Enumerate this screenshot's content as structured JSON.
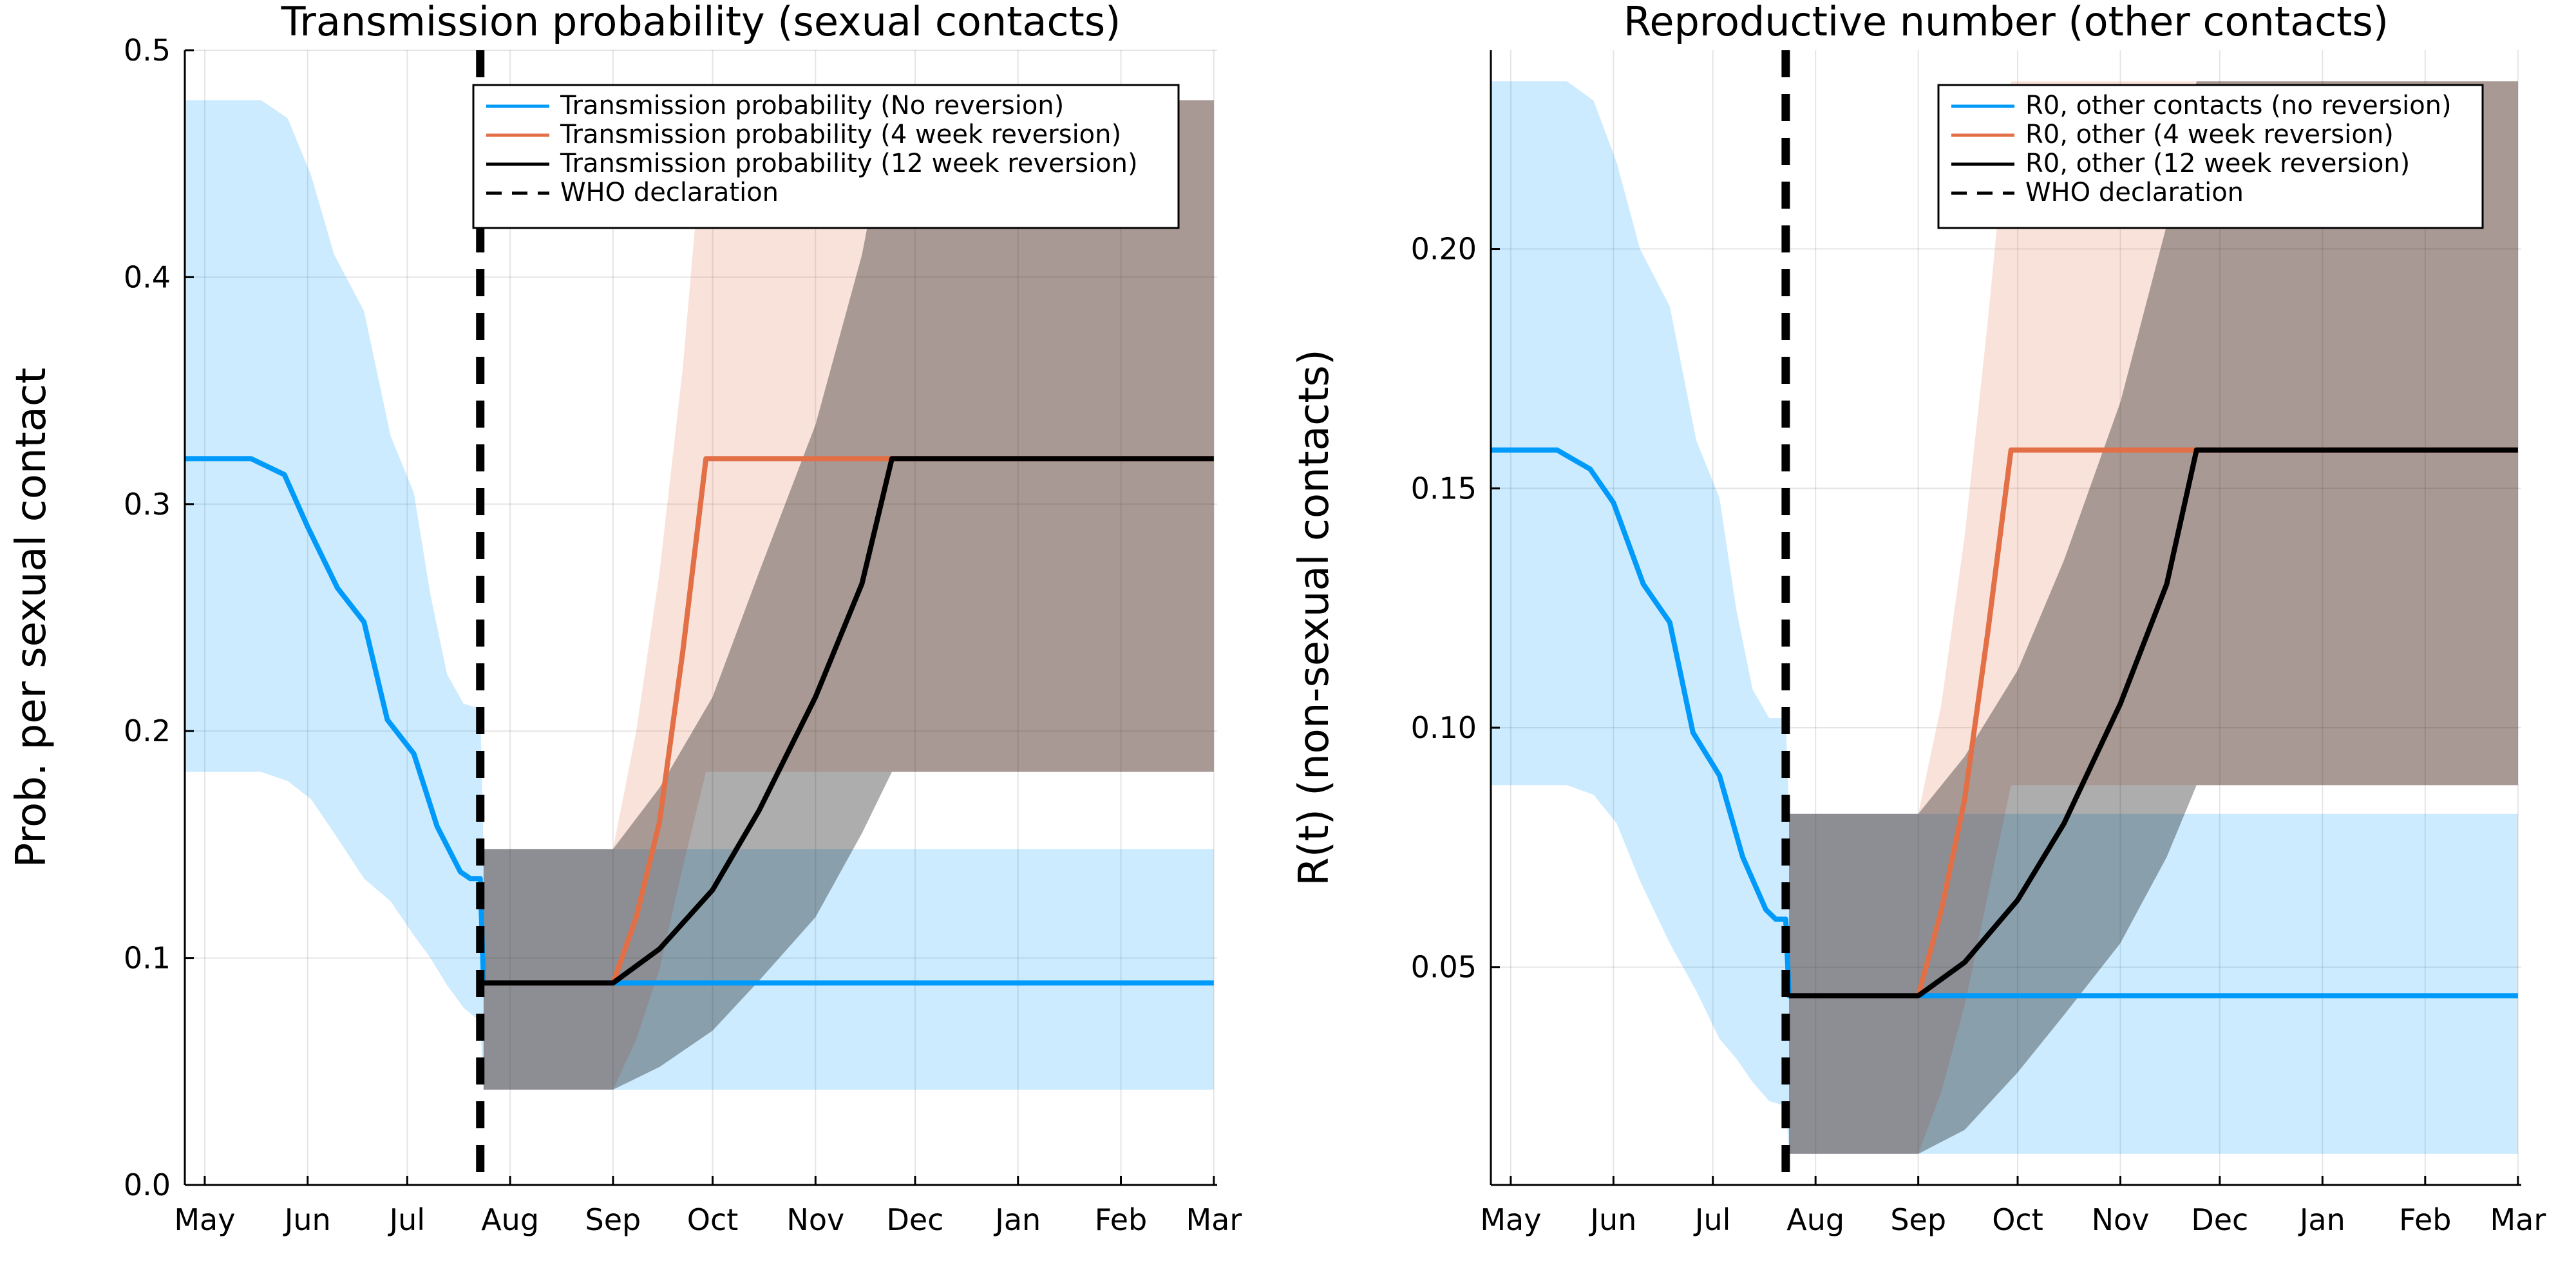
{
  "chart_data": [
    {
      "type": "line",
      "title": "Transmission probability (sexual contacts)",
      "xlabel": "",
      "ylabel": "Prob. per sexual contact",
      "x_axis": "date",
      "xlim": [
        "2022-04-25",
        "2023-03-02"
      ],
      "ylim": [
        0.0,
        0.5
      ],
      "x_ticks": [
        {
          "date": "2022-05-01",
          "label": "May"
        },
        {
          "date": "2022-06-01",
          "label": "Jun"
        },
        {
          "date": "2022-07-01",
          "label": "Jul"
        },
        {
          "date": "2022-08-01",
          "label": "Aug"
        },
        {
          "date": "2022-09-01",
          "label": "Sep"
        },
        {
          "date": "2022-10-01",
          "label": "Oct"
        },
        {
          "date": "2022-11-01",
          "label": "Nov"
        },
        {
          "date": "2022-12-01",
          "label": "Dec"
        },
        {
          "date": "2023-01-01",
          "label": "Jan"
        },
        {
          "date": "2023-02-01",
          "label": "Feb"
        },
        {
          "date": "2023-03-01",
          "label": "Mar"
        }
      ],
      "y_ticks": [
        {
          "value": 0.0,
          "label": "0.0"
        },
        {
          "value": 0.1,
          "label": "0.1"
        },
        {
          "value": 0.2,
          "label": "0.2"
        },
        {
          "value": 0.3,
          "label": "0.3"
        },
        {
          "value": 0.4,
          "label": "0.4"
        },
        {
          "value": 0.5,
          "label": "0.5"
        }
      ],
      "grid": true,
      "legend_position": "top-right",
      "series": [
        {
          "name": "Transmission probability (No reversion)",
          "color": "#009AFA",
          "points": [
            [
              "2022-04-25",
              0.32
            ],
            [
              "2022-05-15",
              0.32
            ],
            [
              "2022-05-25",
              0.313
            ],
            [
              "2022-06-01",
              0.29
            ],
            [
              "2022-06-10",
              0.263
            ],
            [
              "2022-06-18",
              0.248
            ],
            [
              "2022-06-25",
              0.205
            ],
            [
              "2022-07-03",
              0.19
            ],
            [
              "2022-07-10",
              0.158
            ],
            [
              "2022-07-17",
              0.138
            ],
            [
              "2022-07-20",
              0.135
            ],
            [
              "2022-07-23",
              0.135
            ],
            [
              "2022-07-24",
              0.089
            ],
            [
              "2023-03-01",
              0.089
            ]
          ],
          "band": [
            [
              "2022-04-25",
              0.478,
              0.182
            ],
            [
              "2022-05-18",
              0.478,
              0.182
            ],
            [
              "2022-05-26",
              0.47,
              0.178
            ],
            [
              "2022-06-02",
              0.445,
              0.17
            ],
            [
              "2022-06-09",
              0.41,
              0.155
            ],
            [
              "2022-06-18",
              0.385,
              0.135
            ],
            [
              "2022-06-26",
              0.33,
              0.125
            ],
            [
              "2022-07-03",
              0.305,
              0.11
            ],
            [
              "2022-07-08",
              0.26,
              0.1
            ],
            [
              "2022-07-13",
              0.225,
              0.088
            ],
            [
              "2022-07-18",
              0.212,
              0.078
            ],
            [
              "2022-07-23",
              0.21,
              0.072
            ],
            [
              "2022-07-24",
              0.148,
              0.042
            ],
            [
              "2023-03-01",
              0.148,
              0.042
            ]
          ]
        },
        {
          "name": "Transmission probability (4 week reversion)",
          "color": "#E26F46",
          "points": [
            [
              "2022-07-24",
              0.089
            ],
            [
              "2022-09-01",
              0.089
            ],
            [
              "2022-09-08",
              0.118
            ],
            [
              "2022-09-15",
              0.16
            ],
            [
              "2022-09-22",
              0.235
            ],
            [
              "2022-09-29",
              0.32
            ],
            [
              "2023-03-01",
              0.32
            ]
          ],
          "band": [
            [
              "2022-07-24",
              0.148,
              0.042
            ],
            [
              "2022-09-01",
              0.148,
              0.042
            ],
            [
              "2022-09-08",
              0.2,
              0.064
            ],
            [
              "2022-09-15",
              0.27,
              0.095
            ],
            [
              "2022-09-22",
              0.36,
              0.14
            ],
            [
              "2022-09-29",
              0.478,
              0.182
            ],
            [
              "2023-03-01",
              0.478,
              0.182
            ]
          ]
        },
        {
          "name": "Transmission probability (12 week reversion)",
          "color": "#000000",
          "points": [
            [
              "2022-07-24",
              0.089
            ],
            [
              "2022-09-01",
              0.089
            ],
            [
              "2022-09-15",
              0.104
            ],
            [
              "2022-10-01",
              0.13
            ],
            [
              "2022-10-15",
              0.165
            ],
            [
              "2022-11-01",
              0.215
            ],
            [
              "2022-11-15",
              0.265
            ],
            [
              "2022-11-24",
              0.32
            ],
            [
              "2023-03-01",
              0.32
            ]
          ],
          "band": [
            [
              "2022-07-24",
              0.148,
              0.042
            ],
            [
              "2022-09-01",
              0.148,
              0.042
            ],
            [
              "2022-09-15",
              0.175,
              0.052
            ],
            [
              "2022-10-01",
              0.215,
              0.068
            ],
            [
              "2022-10-15",
              0.27,
              0.09
            ],
            [
              "2022-11-01",
              0.335,
              0.118
            ],
            [
              "2022-11-15",
              0.41,
              0.155
            ],
            [
              "2022-11-24",
              0.478,
              0.182
            ],
            [
              "2023-03-01",
              0.478,
              0.182
            ]
          ]
        },
        {
          "name": "WHO declaration",
          "color": "#000000",
          "style": "dashed",
          "vline": "2022-07-23"
        }
      ]
    },
    {
      "type": "line",
      "title": "Reproductive number (other contacts)",
      "xlabel": "",
      "ylabel": "R(t) (non-sexual contacts)",
      "x_axis": "date",
      "xlim": [
        "2022-04-25",
        "2023-03-02"
      ],
      "ylim": [
        0.0045,
        0.2415
      ],
      "x_ticks": [
        {
          "date": "2022-05-01",
          "label": "May"
        },
        {
          "date": "2022-06-01",
          "label": "Jun"
        },
        {
          "date": "2022-07-01",
          "label": "Jul"
        },
        {
          "date": "2022-08-01",
          "label": "Aug"
        },
        {
          "date": "2022-09-01",
          "label": "Sep"
        },
        {
          "date": "2022-10-01",
          "label": "Oct"
        },
        {
          "date": "2022-11-01",
          "label": "Nov"
        },
        {
          "date": "2022-12-01",
          "label": "Dec"
        },
        {
          "date": "2023-01-01",
          "label": "Jan"
        },
        {
          "date": "2023-02-01",
          "label": "Feb"
        },
        {
          "date": "2023-03-01",
          "label": "Mar"
        }
      ],
      "y_ticks": [
        {
          "value": 0.05,
          "label": "0.05"
        },
        {
          "value": 0.1,
          "label": "0.10"
        },
        {
          "value": 0.15,
          "label": "0.15"
        },
        {
          "value": 0.2,
          "label": "0.20"
        }
      ],
      "grid": true,
      "legend_position": "top-right",
      "series": [
        {
          "name": "R0, other contacts (no reversion)",
          "color": "#009AFA",
          "points": [
            [
              "2022-04-25",
              0.158
            ],
            [
              "2022-05-15",
              0.158
            ],
            [
              "2022-05-25",
              0.154
            ],
            [
              "2022-06-01",
              0.147
            ],
            [
              "2022-06-10",
              0.13
            ],
            [
              "2022-06-18",
              0.122
            ],
            [
              "2022-06-25",
              0.099
            ],
            [
              "2022-07-03",
              0.09
            ],
            [
              "2022-07-10",
              0.073
            ],
            [
              "2022-07-17",
              0.062
            ],
            [
              "2022-07-20",
              0.06
            ],
            [
              "2022-07-23",
              0.06
            ],
            [
              "2022-07-24",
              0.044
            ],
            [
              "2023-03-01",
              0.044
            ]
          ],
          "band": [
            [
              "2022-04-25",
              0.235,
              0.088
            ],
            [
              "2022-05-18",
              0.235,
              0.088
            ],
            [
              "2022-05-26",
              0.231,
              0.086
            ],
            [
              "2022-06-02",
              0.218,
              0.08
            ],
            [
              "2022-06-09",
              0.2,
              0.068
            ],
            [
              "2022-06-18",
              0.188,
              0.055
            ],
            [
              "2022-06-26",
              0.16,
              0.045
            ],
            [
              "2022-07-03",
              0.148,
              0.035
            ],
            [
              "2022-07-08",
              0.125,
              0.031
            ],
            [
              "2022-07-13",
              0.108,
              0.026
            ],
            [
              "2022-07-18",
              0.102,
              0.022
            ],
            [
              "2022-07-23",
              0.102,
              0.021
            ],
            [
              "2022-07-24",
              0.082,
              0.011
            ],
            [
              "2023-03-01",
              0.082,
              0.011
            ]
          ]
        },
        {
          "name": "R0, other (4 week reversion)",
          "color": "#E26F46",
          "points": [
            [
              "2022-07-24",
              0.044
            ],
            [
              "2022-09-01",
              0.044
            ],
            [
              "2022-09-08",
              0.062
            ],
            [
              "2022-09-15",
              0.085
            ],
            [
              "2022-09-22",
              0.12
            ],
            [
              "2022-09-29",
              0.158
            ],
            [
              "2023-03-01",
              0.158
            ]
          ],
          "band": [
            [
              "2022-07-24",
              0.082,
              0.011
            ],
            [
              "2022-09-01",
              0.082,
              0.011
            ],
            [
              "2022-09-08",
              0.105,
              0.024
            ],
            [
              "2022-09-15",
              0.14,
              0.042
            ],
            [
              "2022-09-22",
              0.185,
              0.065
            ],
            [
              "2022-09-29",
              0.235,
              0.088
            ],
            [
              "2023-03-01",
              0.235,
              0.088
            ]
          ]
        },
        {
          "name": "R0, other (12 week reversion)",
          "color": "#000000",
          "points": [
            [
              "2022-07-24",
              0.044
            ],
            [
              "2022-09-01",
              0.044
            ],
            [
              "2022-09-15",
              0.051
            ],
            [
              "2022-10-01",
              0.064
            ],
            [
              "2022-10-15",
              0.08
            ],
            [
              "2022-11-01",
              0.105
            ],
            [
              "2022-11-15",
              0.13
            ],
            [
              "2022-11-24",
              0.158
            ],
            [
              "2023-03-01",
              0.158
            ]
          ],
          "band": [
            [
              "2022-07-24",
              0.082,
              0.011
            ],
            [
              "2022-09-01",
              0.082,
              0.011
            ],
            [
              "2022-09-15",
              0.094,
              0.016
            ],
            [
              "2022-10-01",
              0.112,
              0.028
            ],
            [
              "2022-10-15",
              0.135,
              0.04
            ],
            [
              "2022-11-01",
              0.168,
              0.055
            ],
            [
              "2022-11-15",
              0.205,
              0.073
            ],
            [
              "2022-11-24",
              0.235,
              0.088
            ],
            [
              "2023-03-01",
              0.235,
              0.088
            ]
          ]
        },
        {
          "name": "WHO declaration",
          "color": "#000000",
          "style": "dashed",
          "vline": "2022-07-23"
        }
      ]
    }
  ]
}
